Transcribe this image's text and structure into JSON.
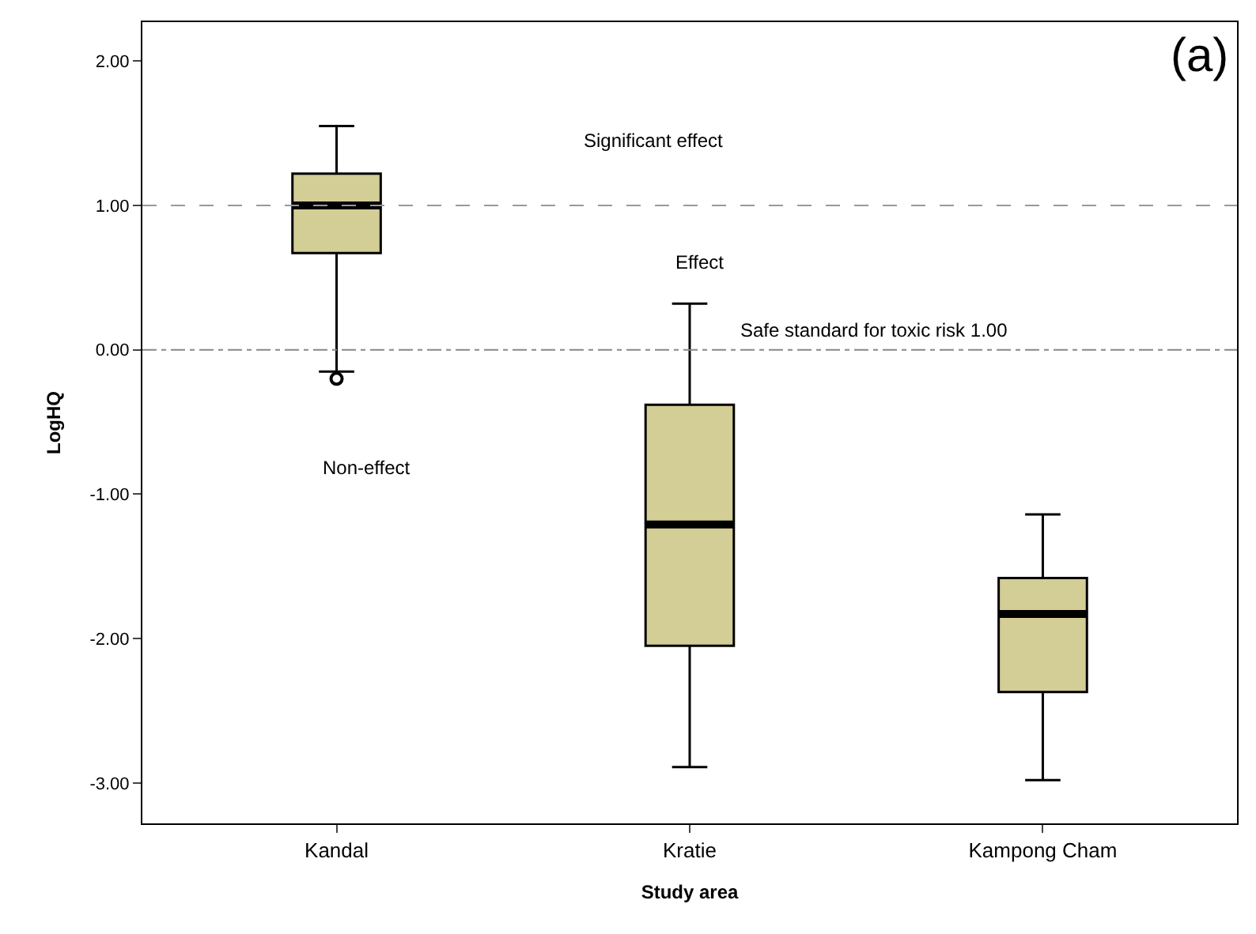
{
  "chart_data": {
    "type": "box",
    "xlabel": "Study area",
    "ylabel": "LogHQ",
    "categories": [
      "Kandal",
      "Kratie",
      "Kampong Cham"
    ],
    "boxes": [
      {
        "low": -0.15,
        "q1": 0.67,
        "median": 1.0,
        "q3": 1.22,
        "high": 1.55,
        "outliers": [
          -0.2
        ]
      },
      {
        "low": -2.89,
        "q1": -2.05,
        "median": -1.21,
        "q3": -0.38,
        "high": 0.32
      },
      {
        "low": -2.98,
        "q1": -2.37,
        "median": -1.83,
        "q3": -1.58,
        "high": -1.14
      }
    ],
    "color": "#d3cd96",
    "ylim": [
      -3.28,
      2.27
    ],
    "yticks": [
      {
        "value": -3,
        "label": "-3.00"
      },
      {
        "value": -2,
        "label": "-2.00"
      },
      {
        "value": -1,
        "label": "-1.00"
      },
      {
        "value": 0,
        "label": "0.00"
      },
      {
        "value": 1,
        "label": "1.00"
      },
      {
        "value": 2,
        "label": "2.00"
      }
    ],
    "ref_lines": [
      {
        "axis": "y",
        "value": 1,
        "color": "#999999",
        "line_style": "dashed"
      },
      {
        "axis": "y",
        "value": 0,
        "label": "Safe standard for toxic risk 1.00",
        "color": "#888888",
        "line_style": "dashdot"
      }
    ],
    "annotations": [
      "Significant effect",
      "Effect",
      "Non-effect",
      "(a)"
    ],
    "marker": "circle"
  }
}
